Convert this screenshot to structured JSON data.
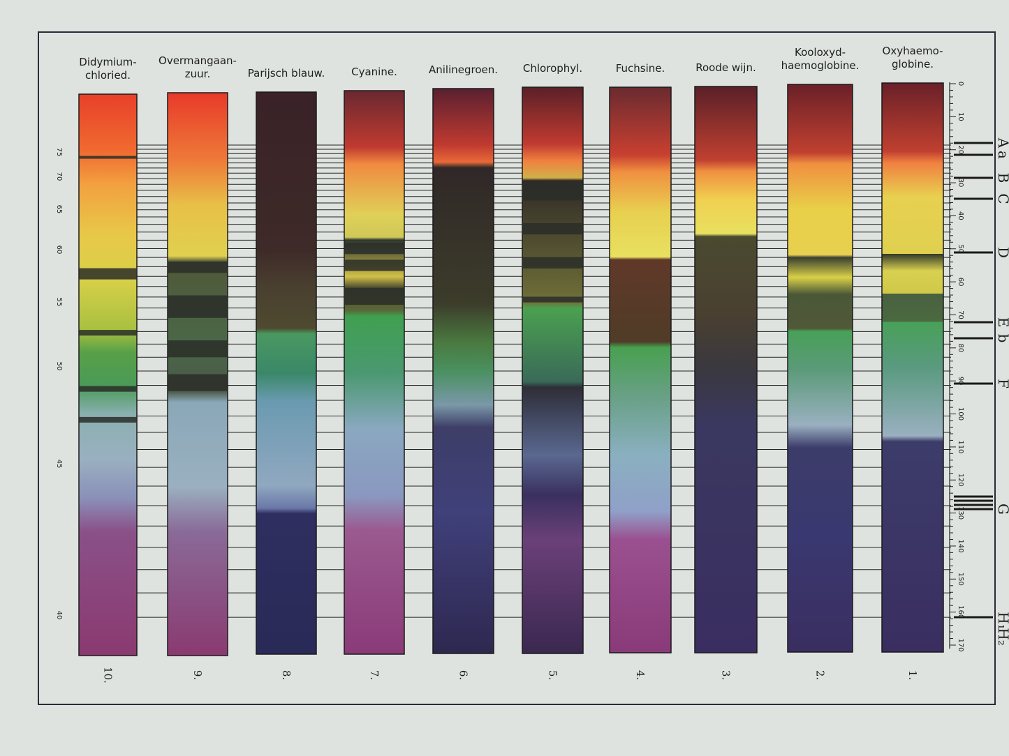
{
  "spectra": [
    {
      "label": [
        "Didymium-",
        "chloried."
      ],
      "number": "10."
    },
    {
      "label": [
        "Overmangaan-",
        "zuur."
      ],
      "number": "9."
    },
    {
      "label": [
        "Parijsch blauw."
      ],
      "number": "8."
    },
    {
      "label": [
        "Cyanine."
      ],
      "number": "7."
    },
    {
      "label": [
        "Anilinegroen."
      ],
      "number": "6."
    },
    {
      "label": [
        "Chlorophyl."
      ],
      "number": "5."
    },
    {
      "label": [
        "Fuchsine."
      ],
      "number": "4."
    },
    {
      "label": [
        "Roode wijn."
      ],
      "number": "3."
    },
    {
      "label": [
        "Kooloxyd-",
        "haemoglobine."
      ],
      "number": "2."
    },
    {
      "label": [
        "Oxyhaemo-",
        "globine."
      ],
      "number": "1."
    }
  ],
  "left_scale": [
    "75",
    "70",
    "65",
    "60",
    "55",
    "50",
    "45",
    "40"
  ],
  "right_scale": [
    "0",
    "10",
    "20",
    "30",
    "40",
    "50",
    "60",
    "70",
    "80",
    "90",
    "100",
    "110",
    "120",
    "130",
    "140",
    "150",
    "160",
    "170"
  ],
  "fraunhofer_lines": [
    "A",
    "a",
    "B",
    "C",
    "D",
    "E",
    "b",
    "F",
    "G",
    "H₁",
    "H₂"
  ]
}
